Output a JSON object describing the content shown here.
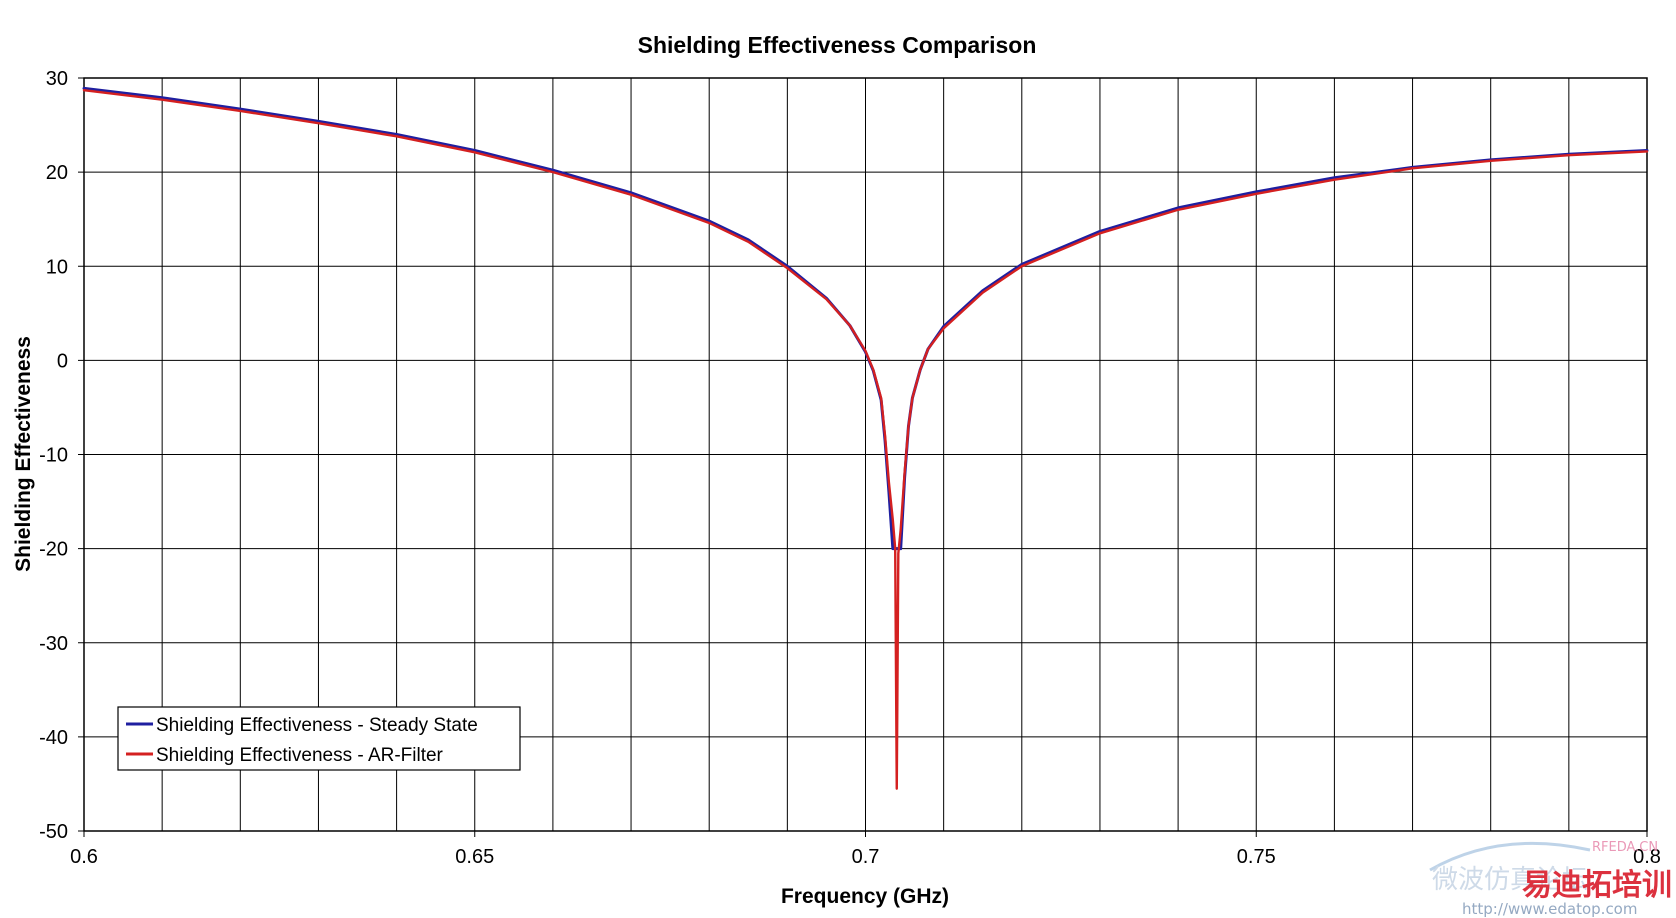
{
  "chart_data": {
    "type": "line",
    "title": "Shielding Effectiveness Comparison",
    "xlabel": "Frequency (GHz)",
    "ylabel": "Shielding Effectiveness",
    "xlim": [
      0.6,
      0.8
    ],
    "ylim": [
      -50,
      30
    ],
    "x_ticks": [
      "0.6",
      "0.65",
      "0.7",
      "0.75",
      "0.8"
    ],
    "y_ticks": [
      "30",
      "20",
      "10",
      "0",
      "-10",
      "-20",
      "-30",
      "-40",
      "-50"
    ],
    "x_grid_step": 0.01,
    "y_grid_step": 10,
    "grid": true,
    "legend_position": "bottom-left",
    "series": [
      {
        "name": "Shielding Effectiveness - Steady State",
        "color": "#1f1fa0",
        "points": [
          [
            0.6,
            28.9
          ],
          [
            0.61,
            27.9
          ],
          [
            0.62,
            26.7
          ],
          [
            0.63,
            25.4
          ],
          [
            0.64,
            24.0
          ],
          [
            0.65,
            22.3
          ],
          [
            0.66,
            20.2
          ],
          [
            0.67,
            17.8
          ],
          [
            0.68,
            14.8
          ],
          [
            0.685,
            12.8
          ],
          [
            0.69,
            10.0
          ],
          [
            0.695,
            6.6
          ],
          [
            0.698,
            3.7
          ],
          [
            0.7,
            0.9
          ],
          [
            0.701,
            -1.1
          ],
          [
            0.702,
            -4.2
          ],
          [
            0.7025,
            -8.5
          ],
          [
            0.703,
            -14.0
          ],
          [
            0.7035,
            -20.0
          ],
          [
            0.704,
            -20.0
          ],
          [
            0.7045,
            -20.0
          ],
          [
            0.705,
            -12.5
          ],
          [
            0.7055,
            -7.0
          ],
          [
            0.706,
            -4.0
          ],
          [
            0.707,
            -1.0
          ],
          [
            0.708,
            1.2
          ],
          [
            0.71,
            3.6
          ],
          [
            0.715,
            7.4
          ],
          [
            0.72,
            10.2
          ],
          [
            0.73,
            13.7
          ],
          [
            0.74,
            16.2
          ],
          [
            0.75,
            17.9
          ],
          [
            0.76,
            19.4
          ],
          [
            0.77,
            20.5
          ],
          [
            0.78,
            21.3
          ],
          [
            0.79,
            21.9
          ],
          [
            0.8,
            22.3
          ]
        ]
      },
      {
        "name": "Shielding Effectiveness - AR-Filter",
        "color": "#d42020",
        "points": [
          [
            0.6,
            28.7
          ],
          [
            0.61,
            27.7
          ],
          [
            0.62,
            26.5
          ],
          [
            0.63,
            25.2
          ],
          [
            0.64,
            23.8
          ],
          [
            0.65,
            22.1
          ],
          [
            0.66,
            20.0
          ],
          [
            0.67,
            17.6
          ],
          [
            0.68,
            14.6
          ],
          [
            0.685,
            12.6
          ],
          [
            0.69,
            9.8
          ],
          [
            0.695,
            6.5
          ],
          [
            0.698,
            3.7
          ],
          [
            0.7,
            1.0
          ],
          [
            0.701,
            -1.0
          ],
          [
            0.702,
            -4.0
          ],
          [
            0.7025,
            -8.0
          ],
          [
            0.703,
            -13.0
          ],
          [
            0.7035,
            -17.0
          ],
          [
            0.7038,
            -20.0
          ],
          [
            0.704,
            -45.5
          ],
          [
            0.7042,
            -20.5
          ],
          [
            0.7045,
            -18.0
          ],
          [
            0.705,
            -12.0
          ],
          [
            0.7055,
            -7.0
          ],
          [
            0.706,
            -4.0
          ],
          [
            0.707,
            -1.0
          ],
          [
            0.708,
            1.2
          ],
          [
            0.71,
            3.4
          ],
          [
            0.715,
            7.2
          ],
          [
            0.72,
            10.0
          ],
          [
            0.73,
            13.5
          ],
          [
            0.74,
            16.0
          ],
          [
            0.75,
            17.7
          ],
          [
            0.76,
            19.2
          ],
          [
            0.77,
            20.4
          ],
          [
            0.78,
            21.2
          ],
          [
            0.79,
            21.8
          ],
          [
            0.8,
            22.2
          ]
        ]
      }
    ]
  },
  "watermark": {
    "brand": "RFEDA.CN",
    "line_cn": "微波仿真论坛",
    "site_cn": "易迪拓培训",
    "url": "http://www.edatop.com"
  }
}
